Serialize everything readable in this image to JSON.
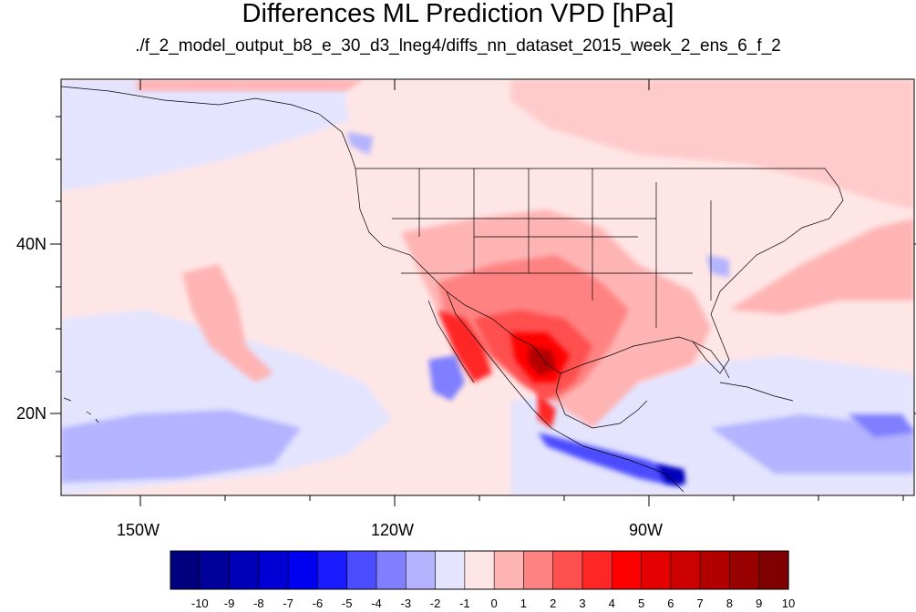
{
  "map": {
    "title": "Differences ML Prediction VPD [hPa]",
    "subtitle": "./f_2_model_output_b8_e_30_d3_lneg4/diffs_nn_dataset_2015_week_2_ens_6_f_2",
    "lon_range": [
      -160,
      -62
    ],
    "lat_range": [
      10,
      59
    ],
    "x_tick_labels": [
      "150W",
      "120W",
      "90W"
    ],
    "y_tick_labels": [
      "40N",
      "20N"
    ]
  },
  "colorbar": {
    "levels": [
      "-10",
      "-9",
      "-8",
      "-7",
      "-6",
      "-5",
      "-4",
      "-3",
      "-2",
      "-1",
      "0",
      "1",
      "2",
      "3",
      "4",
      "5",
      "6",
      "7",
      "8",
      "9",
      "10"
    ],
    "colors": [
      "#00007f",
      "#00009b",
      "#0000b8",
      "#0000d4",
      "#0000f0",
      "#1b1bff",
      "#4c4cff",
      "#7f7fff",
      "#b3b3ff",
      "#e4e4ff",
      "#ffe6e6",
      "#ffb4b4",
      "#ff8282",
      "#ff5050",
      "#ff2626",
      "#ff0000",
      "#e50000",
      "#cc0000",
      "#b20000",
      "#990000",
      "#7f0000"
    ]
  }
}
